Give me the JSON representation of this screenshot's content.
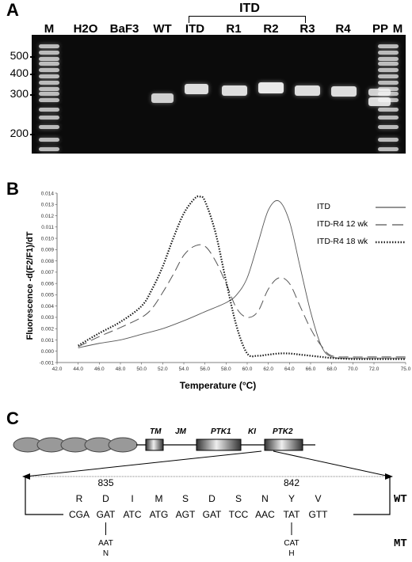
{
  "panelA": {
    "letter": "A",
    "group_label": "ITD",
    "lanes": [
      "M",
      "H2O",
      "BaF3",
      "WT",
      "ITD",
      "R1",
      "R2",
      "R3",
      "R4",
      "PP",
      "M"
    ],
    "size_markers": [
      "500",
      "400",
      "300",
      "200"
    ]
  },
  "panelB": {
    "letter": "B",
    "legend": [
      {
        "name": "ITD",
        "style": "solid"
      },
      {
        "name": "ITD-R4 12 wk",
        "style": "dashed"
      },
      {
        "name": "ITD-R4 18 wk",
        "style": "dotted"
      }
    ]
  },
  "chart_data": {
    "type": "line",
    "title": "",
    "xlabel": "Temperature (°C)",
    "ylabel": "Fluorescence -d(F2/F1)/dT",
    "xlim": [
      42.0,
      75.0
    ],
    "ylim": [
      -0.001,
      0.014
    ],
    "x_ticks": [
      "42.0",
      "44.0",
      "46.0",
      "48.0",
      "50.0",
      "52.0",
      "54.0",
      "56.0",
      "58.0",
      "60.0",
      "62.0",
      "64.0",
      "66.0",
      "68.0",
      "70.0",
      "72.0",
      "75.0"
    ],
    "y_ticks": [
      "-0.001",
      "0.000",
      "0.001",
      "0.002",
      "0.003",
      "0.004",
      "0.005",
      "0.006",
      "0.007",
      "0.008",
      "0.009",
      "0.010",
      "0.011",
      "0.012",
      "0.013",
      "0.014"
    ],
    "series": [
      {
        "name": "ITD",
        "style": "solid",
        "x": [
          44,
          46,
          48,
          50,
          52,
          54,
          56,
          58,
          59,
          60,
          61,
          62,
          63,
          64,
          65,
          66,
          67,
          68,
          70,
          72,
          75
        ],
        "y": [
          0.0003,
          0.0007,
          0.001,
          0.0015,
          0.002,
          0.0027,
          0.0035,
          0.0043,
          0.005,
          0.0065,
          0.0095,
          0.0125,
          0.0133,
          0.0115,
          0.0075,
          0.0035,
          0.0005,
          -0.0005,
          -0.0006,
          -0.0006,
          -0.0006
        ]
      },
      {
        "name": "ITD-R4 12 wk",
        "style": "dashed",
        "x": [
          44,
          46,
          48,
          50,
          51,
          52,
          53,
          54,
          55,
          56,
          57,
          58,
          59,
          60,
          61,
          62,
          63,
          64,
          65,
          66,
          67,
          68,
          70,
          72,
          75
        ],
        "y": [
          0.0004,
          0.0013,
          0.0021,
          0.003,
          0.0038,
          0.0052,
          0.0068,
          0.0085,
          0.0093,
          0.0093,
          0.008,
          0.006,
          0.0038,
          0.003,
          0.0035,
          0.0055,
          0.0065,
          0.006,
          0.004,
          0.002,
          0.0005,
          -0.0004,
          -0.0005,
          -0.0005,
          -0.0005
        ]
      },
      {
        "name": "ITD-R4 18 wk",
        "style": "dotted",
        "x": [
          44,
          46,
          48,
          50,
          51,
          52,
          53,
          54,
          55,
          55.5,
          56,
          57,
          58,
          59,
          60,
          61,
          62,
          63,
          64,
          65,
          66,
          67,
          68,
          70,
          72,
          75
        ],
        "y": [
          0.0005,
          0.0016,
          0.0026,
          0.004,
          0.0055,
          0.0075,
          0.01,
          0.0122,
          0.0135,
          0.0137,
          0.0133,
          0.0105,
          0.0062,
          0.0022,
          -0.0002,
          -0.0004,
          -0.0003,
          -0.0002,
          -0.0002,
          -0.0003,
          -0.0004,
          -0.0005,
          -0.0006,
          -0.0007,
          -0.0007,
          -0.0007
        ]
      }
    ]
  },
  "panelC": {
    "letter": "C",
    "domains": [
      "TM",
      "JM",
      "PTK1",
      "KI",
      "PTK2"
    ],
    "positions": [
      "835",
      "842"
    ],
    "amino_acids": [
      "R",
      "D",
      "I",
      "M",
      "S",
      "D",
      "S",
      "N",
      "Y",
      "V"
    ],
    "codons": [
      "CGA",
      "GAT",
      "ATC",
      "ATG",
      "AGT",
      "GAT",
      "TCC",
      "AAC",
      "TAT",
      "GTT"
    ],
    "wt_label": "WT",
    "mt_label": "MT",
    "mutations": [
      {
        "codon": "AAT",
        "aa": "N"
      },
      {
        "codon": "CAT",
        "aa": "H"
      }
    ]
  }
}
